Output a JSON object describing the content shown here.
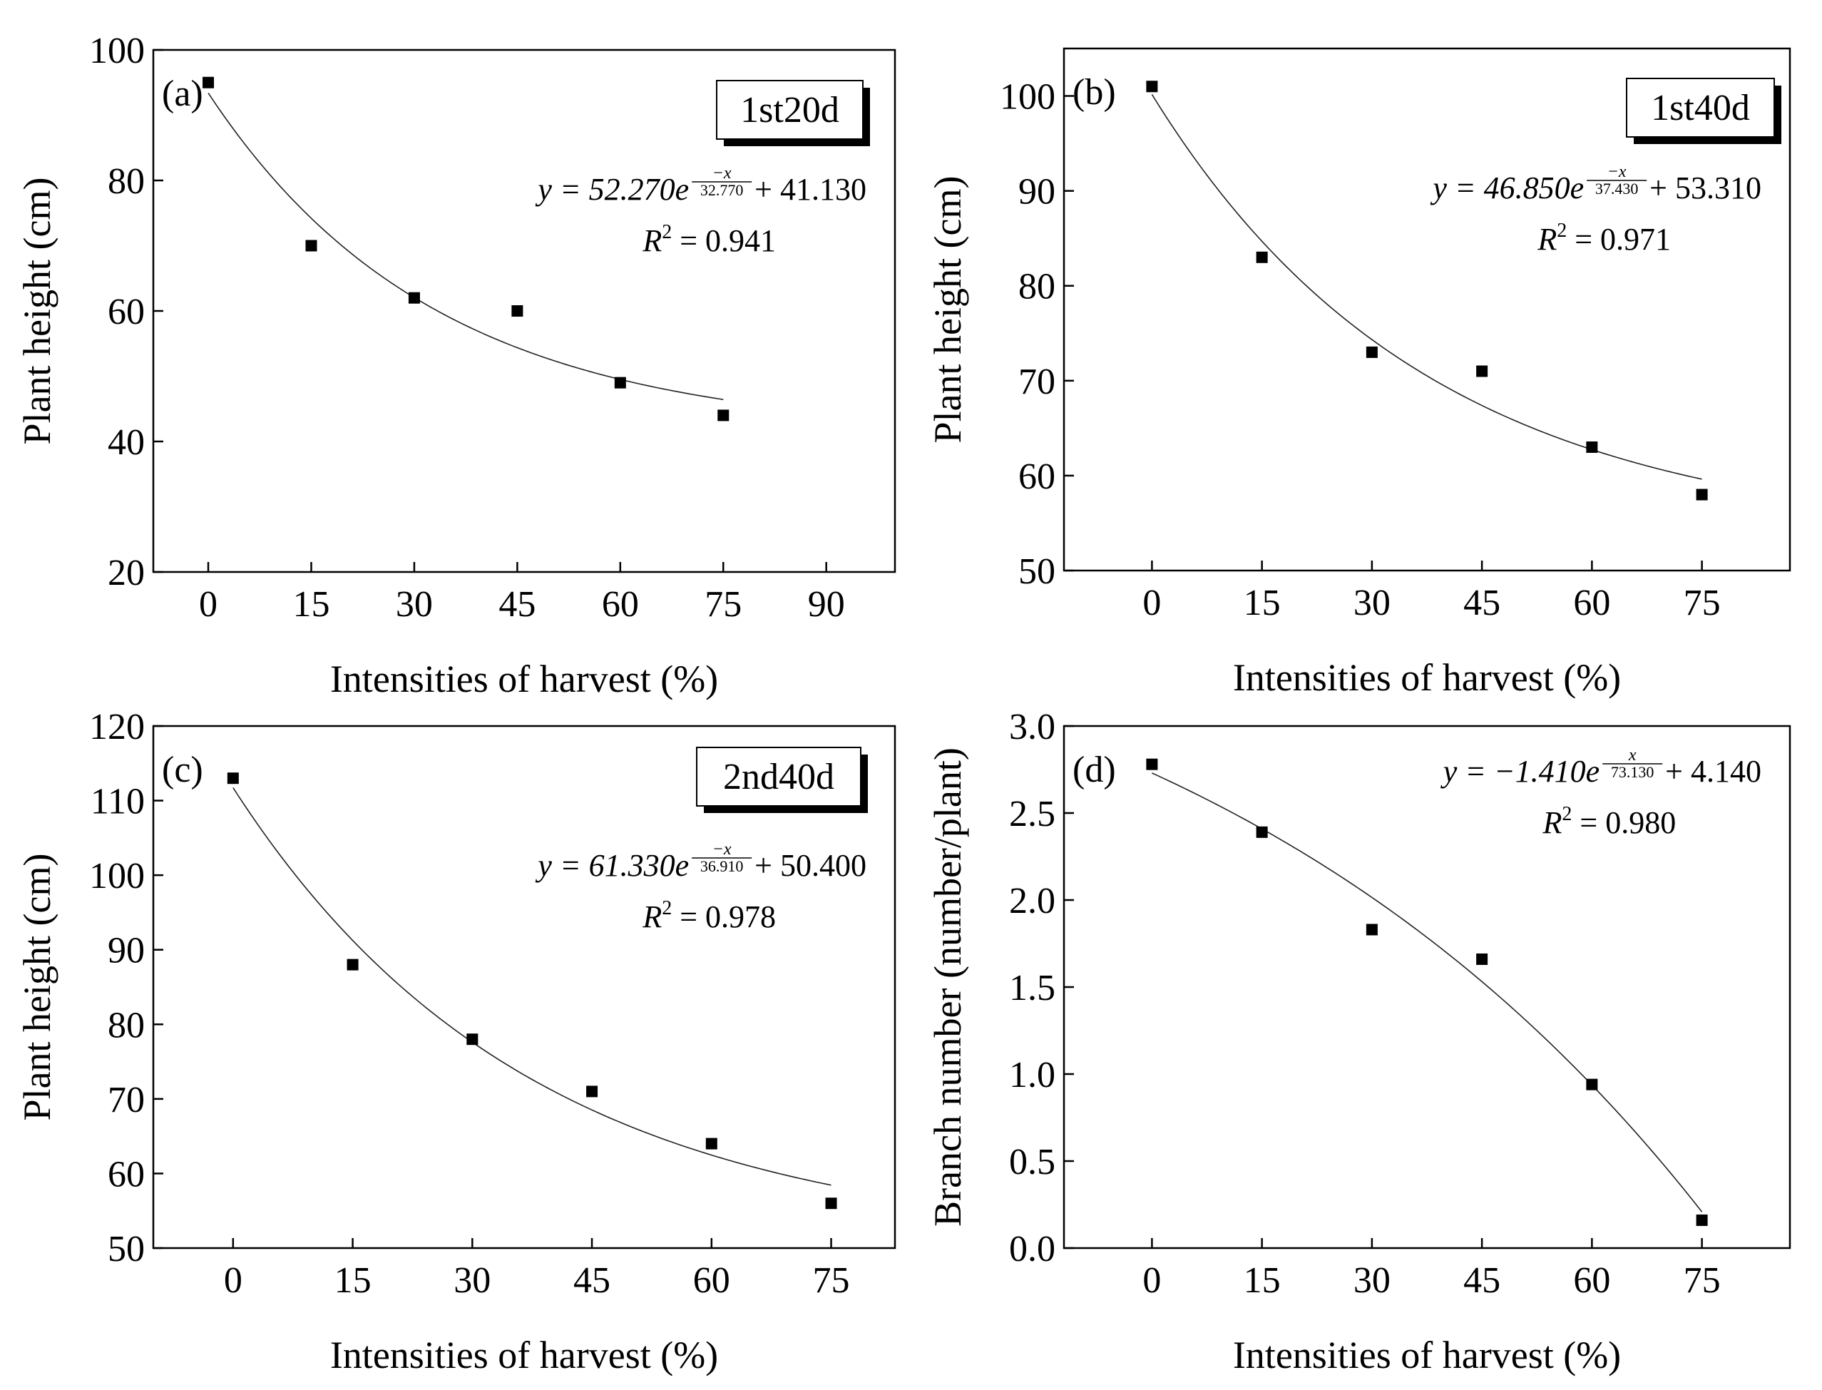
{
  "chart_data": [
    {
      "type": "scatter",
      "panel": "(a)",
      "box_label": "1st20d",
      "xlabel": "Intensities of harvest (%)",
      "ylabel": "Plant height (cm)",
      "xlim": [
        -8,
        100
      ],
      "ylim": [
        20,
        100
      ],
      "xticks": [
        0,
        15,
        30,
        45,
        60,
        75,
        90
      ],
      "yticks": [
        20,
        40,
        60,
        80,
        100
      ],
      "xtick_labels": [
        "0",
        "15",
        "30",
        "45",
        "60",
        "75",
        "90"
      ],
      "ytick_labels": [
        "20",
        "40",
        "60",
        "80",
        "100"
      ],
      "x": [
        0,
        15,
        30,
        45,
        60,
        75
      ],
      "y": [
        95,
        70,
        62,
        60,
        49,
        44
      ],
      "fit": {
        "a": 52.27,
        "sign": -1,
        "b": 32.77,
        "c": 41.13,
        "x_range": [
          0,
          75
        ]
      },
      "equation": {
        "prefix": "y = 52.270e",
        "exp_num": "−x",
        "exp_den": "32.770",
        "suffix": " + 41.130"
      },
      "r2": {
        "prefix": "R",
        "sup": "2",
        "suffix": " = 0.941"
      }
    },
    {
      "type": "scatter",
      "panel": "(b)",
      "box_label": "1st40d",
      "xlabel": "Intensities of harvest (%)",
      "ylabel": "Plant height (cm)",
      "xlim": [
        -12,
        87
      ],
      "ylim": [
        50,
        105
      ],
      "xticks": [
        0,
        15,
        30,
        45,
        60,
        75
      ],
      "yticks": [
        50,
        60,
        70,
        80,
        90,
        100
      ],
      "xtick_labels": [
        "0",
        "15",
        "30",
        "45",
        "60",
        "75"
      ],
      "ytick_labels": [
        "50",
        "60",
        "70",
        "80",
        "90",
        "100"
      ],
      "x": [
        0,
        15,
        30,
        45,
        60,
        75
      ],
      "y": [
        101,
        83,
        73,
        71,
        63,
        58
      ],
      "fit": {
        "a": 46.85,
        "sign": -1,
        "b": 37.43,
        "c": 53.31,
        "x_range": [
          0,
          75
        ]
      },
      "equation": {
        "prefix": "y = 46.850e",
        "exp_num": "−x",
        "exp_den": "37.430",
        "suffix": " + 53.310"
      },
      "r2": {
        "prefix": "R",
        "sup": "2",
        "suffix": " = 0.971"
      }
    },
    {
      "type": "scatter",
      "panel": "(c)",
      "box_label": "2nd40d",
      "xlabel": "Intensities of harvest (%)",
      "ylabel": "Plant height (cm)",
      "xlim": [
        -10,
        83
      ],
      "ylim": [
        50,
        120
      ],
      "xticks": [
        0,
        15,
        30,
        45,
        60,
        75
      ],
      "yticks": [
        50,
        60,
        70,
        80,
        90,
        100,
        110,
        120
      ],
      "xtick_labels": [
        "0",
        "15",
        "30",
        "45",
        "60",
        "75"
      ],
      "ytick_labels": [
        "50",
        "60",
        "70",
        "80",
        "90",
        "100",
        "110",
        "120"
      ],
      "x": [
        0,
        15,
        30,
        45,
        60,
        75
      ],
      "y": [
        113,
        88,
        78,
        71,
        64,
        56
      ],
      "fit": {
        "a": 61.33,
        "sign": -1,
        "b": 36.91,
        "c": 50.4,
        "x_range": [
          0,
          75
        ]
      },
      "equation": {
        "prefix": "y = 61.330e",
        "exp_num": "−x",
        "exp_den": "36.910",
        "suffix": " + 50.400"
      },
      "r2": {
        "prefix": "R",
        "sup": "2",
        "suffix": " = 0.978"
      }
    },
    {
      "type": "scatter",
      "panel": "(d)",
      "box_label": "",
      "xlabel": "Intensities of harvest (%)",
      "ylabel": "Branch number (number/plant)",
      "xlim": [
        -12,
        87
      ],
      "ylim": [
        0,
        3
      ],
      "xticks": [
        0,
        15,
        30,
        45,
        60,
        75
      ],
      "yticks": [
        0,
        0.5,
        1.0,
        1.5,
        2.0,
        2.5,
        3.0
      ],
      "xtick_labels": [
        "0",
        "15",
        "30",
        "45",
        "60",
        "75"
      ],
      "ytick_labels": [
        "0.0",
        "0.5",
        "1.0",
        "1.5",
        "2.0",
        "2.5",
        "3.0"
      ],
      "x": [
        0,
        15,
        30,
        45,
        60,
        75
      ],
      "y": [
        2.78,
        2.39,
        1.83,
        1.66,
        0.94,
        0.16
      ],
      "fit": {
        "a": -1.41,
        "sign": 1,
        "b": 73.13,
        "c": 4.14,
        "x_range": [
          0,
          75
        ]
      },
      "equation": {
        "prefix": "y = −1.410e",
        "exp_num": "x",
        "exp_den": "73.130",
        "suffix": " + 4.140"
      },
      "r2": {
        "prefix": "R",
        "sup": "2",
        "suffix": " = 0.980"
      }
    }
  ]
}
